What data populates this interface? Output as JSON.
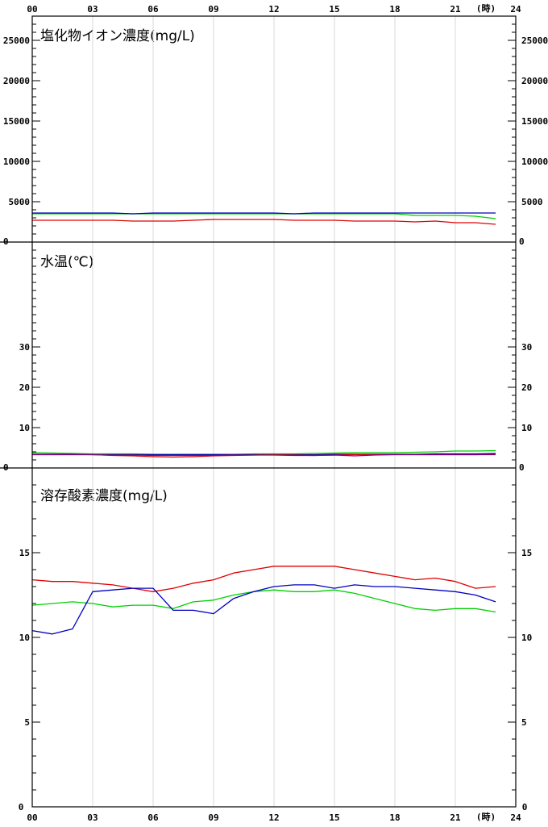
{
  "time_axis": {
    "ticks": [
      "00",
      "03",
      "06",
      "09",
      "12",
      "15",
      "18",
      "21",
      "24"
    ],
    "unit_label": "(時)"
  },
  "colors": {
    "frame": "#000000",
    "vgrid": "#d8d8d8",
    "red": "#e00000",
    "green": "#00d000",
    "blue": "#0000c0",
    "purple": "#800080"
  },
  "chart_data": [
    {
      "type": "line",
      "title": "塩化物イオン濃度(mg/L)",
      "xlabel": "(時)",
      "xlim": [
        0,
        24
      ],
      "ylim": [
        0,
        28000
      ],
      "y_tick_labels": [
        "0",
        "5000",
        "10000",
        "15000",
        "20000",
        "25000"
      ],
      "grid": "vertical",
      "x": [
        0,
        1,
        2,
        3,
        4,
        5,
        6,
        7,
        8,
        9,
        10,
        11,
        12,
        13,
        14,
        15,
        16,
        17,
        18,
        19,
        20,
        21,
        22,
        23
      ],
      "series": [
        {
          "color": "red",
          "values": [
            2700,
            2700,
            2700,
            2700,
            2700,
            2600,
            2600,
            2600,
            2700,
            2800,
            2800,
            2800,
            2800,
            2700,
            2700,
            2700,
            2600,
            2600,
            2600,
            2500,
            2600,
            2400,
            2400,
            2200
          ]
        },
        {
          "color": "green",
          "values": [
            3500,
            3500,
            3500,
            3500,
            3500,
            3500,
            3500,
            3500,
            3500,
            3500,
            3500,
            3500,
            3500,
            3500,
            3500,
            3500,
            3500,
            3500,
            3500,
            3300,
            3300,
            3300,
            3200,
            2900
          ]
        },
        {
          "color": "blue",
          "values": [
            3600,
            3600,
            3600,
            3600,
            3600,
            3500,
            3600,
            3600,
            3600,
            3600,
            3600,
            3600,
            3600,
            3500,
            3600,
            3600,
            3600,
            3600,
            3600,
            3600,
            3600,
            3600,
            3600,
            3600
          ]
        }
      ]
    },
    {
      "type": "line",
      "title": "水温(℃)",
      "xlabel": "",
      "xlim": [
        0,
        24
      ],
      "ylim": [
        0,
        56
      ],
      "y_tick_labels": [
        "0",
        "10",
        "20",
        "30"
      ],
      "grid": "vertical",
      "x": [
        0,
        1,
        2,
        3,
        4,
        5,
        6,
        7,
        8,
        9,
        10,
        11,
        12,
        13,
        14,
        15,
        16,
        17,
        18,
        19,
        20,
        21,
        22,
        23
      ],
      "series": [
        {
          "color": "green",
          "values": [
            3.8,
            3.7,
            3.6,
            3.5,
            3.5,
            3.5,
            3.4,
            3.4,
            3.4,
            3.4,
            3.4,
            3.5,
            3.5,
            3.5,
            3.6,
            3.7,
            3.8,
            3.8,
            3.8,
            3.9,
            4.0,
            4.2,
            4.2,
            4.3
          ]
        },
        {
          "color": "blue",
          "values": [
            3.4,
            3.4,
            3.4,
            3.3,
            3.3,
            3.3,
            3.3,
            3.3,
            3.3,
            3.3,
            3.3,
            3.3,
            3.3,
            3.3,
            3.3,
            3.4,
            3.4,
            3.4,
            3.4,
            3.4,
            3.5,
            3.5,
            3.5,
            3.6
          ]
        },
        {
          "color": "red",
          "values": [
            3.3,
            3.3,
            3.3,
            3.3,
            3.1,
            3.0,
            2.8,
            2.7,
            2.8,
            3.0,
            3.1,
            3.2,
            3.3,
            3.2,
            3.1,
            3.2,
            3.3,
            3.3,
            3.3,
            3.3,
            3.3,
            3.3,
            3.3,
            3.3
          ]
        },
        {
          "color": "purple",
          "values": [
            3.3,
            3.3,
            3.3,
            3.3,
            3.2,
            3.2,
            3.1,
            3.1,
            3.1,
            3.1,
            3.2,
            3.2,
            3.2,
            3.1,
            3.1,
            3.2,
            3.0,
            3.2,
            3.3,
            3.3,
            3.3,
            3.3,
            3.3,
            3.4
          ]
        }
      ]
    },
    {
      "type": "line",
      "title": "溶存酸素濃度(mg/L)",
      "xlabel": "(時)",
      "xlim": [
        0,
        24
      ],
      "ylim": [
        0,
        20
      ],
      "y_tick_labels": [
        "0",
        "5",
        "10",
        "15"
      ],
      "grid": "vertical",
      "x": [
        0,
        1,
        2,
        3,
        4,
        5,
        6,
        7,
        8,
        9,
        10,
        11,
        12,
        13,
        14,
        15,
        16,
        17,
        18,
        19,
        20,
        21,
        22,
        23
      ],
      "series": [
        {
          "color": "red",
          "values": [
            13.4,
            13.3,
            13.3,
            13.2,
            13.1,
            12.9,
            12.7,
            12.9,
            13.2,
            13.4,
            13.8,
            14.0,
            14.2,
            14.2,
            14.2,
            14.2,
            14.0,
            13.8,
            13.6,
            13.4,
            13.5,
            13.3,
            12.9,
            13.0
          ]
        },
        {
          "color": "green",
          "values": [
            11.9,
            12.0,
            12.1,
            12.0,
            11.8,
            11.9,
            11.9,
            11.7,
            12.1,
            12.2,
            12.5,
            12.7,
            12.8,
            12.7,
            12.7,
            12.8,
            12.6,
            12.3,
            12.0,
            11.7,
            11.6,
            11.7,
            11.7,
            11.5
          ]
        },
        {
          "color": "blue",
          "values": [
            10.4,
            10.2,
            10.5,
            12.7,
            12.8,
            12.9,
            12.9,
            11.6,
            11.6,
            11.4,
            12.3,
            12.7,
            13.0,
            13.1,
            13.1,
            12.9,
            13.1,
            13.0,
            13.0,
            12.9,
            12.8,
            12.7,
            12.5,
            12.1
          ]
        }
      ]
    }
  ]
}
